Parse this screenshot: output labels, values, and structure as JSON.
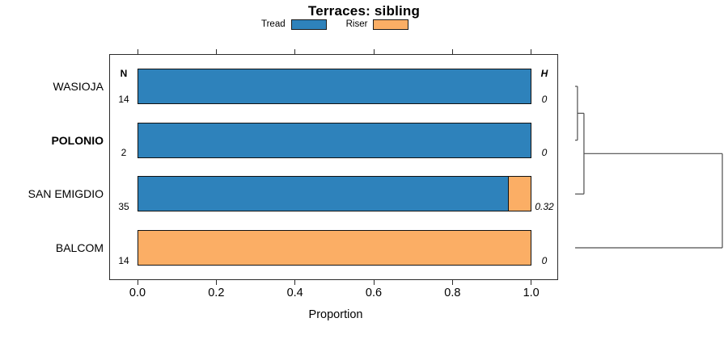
{
  "chart_data": {
    "type": "bar",
    "orientation": "horizontal",
    "stacked": true,
    "title": "Terraces: sibling",
    "categories": [
      "WASIOJA",
      "POLONIO",
      "SAN EMIGDIO",
      "BALCOM"
    ],
    "highlighted_category": "POLONIO",
    "series": [
      {
        "name": "Tread",
        "color": "#2E82BB",
        "values": [
          1.0,
          1.0,
          0.943,
          0.0
        ]
      },
      {
        "name": "Riser",
        "color": "#FBAE65",
        "values": [
          0.0,
          0.0,
          0.057,
          1.0
        ]
      }
    ],
    "column_headers": {
      "n": "N",
      "h": "H"
    },
    "n_values": [
      "14",
      "2",
      "35",
      "14"
    ],
    "h_values": [
      "0",
      "0",
      "0.32",
      "0"
    ],
    "xlabel": "Proportion",
    "xlim": [
      0,
      1
    ],
    "xticks": [
      0,
      0.2,
      0.4,
      0.6,
      0.8,
      1.0
    ],
    "xtick_labels": [
      "0.0",
      "0.2",
      "0.4",
      "0.6",
      "0.8",
      "1.0"
    ],
    "grid": false,
    "legend_position": "top",
    "dendrogram": {
      "structure": "(((WASIOJA,POLONIO),SAN EMIGDIO),BALCOM)",
      "merge_heights_relative": [
        0.016,
        0.06,
        1.0
      ]
    },
    "colors": {
      "tread": "#2E82BB",
      "riser": "#FBAE65",
      "bar_border": "#111111",
      "box_border": "#2b2b2b",
      "dendrogram_line": "#4d4d4d",
      "text": "#000000"
    }
  }
}
